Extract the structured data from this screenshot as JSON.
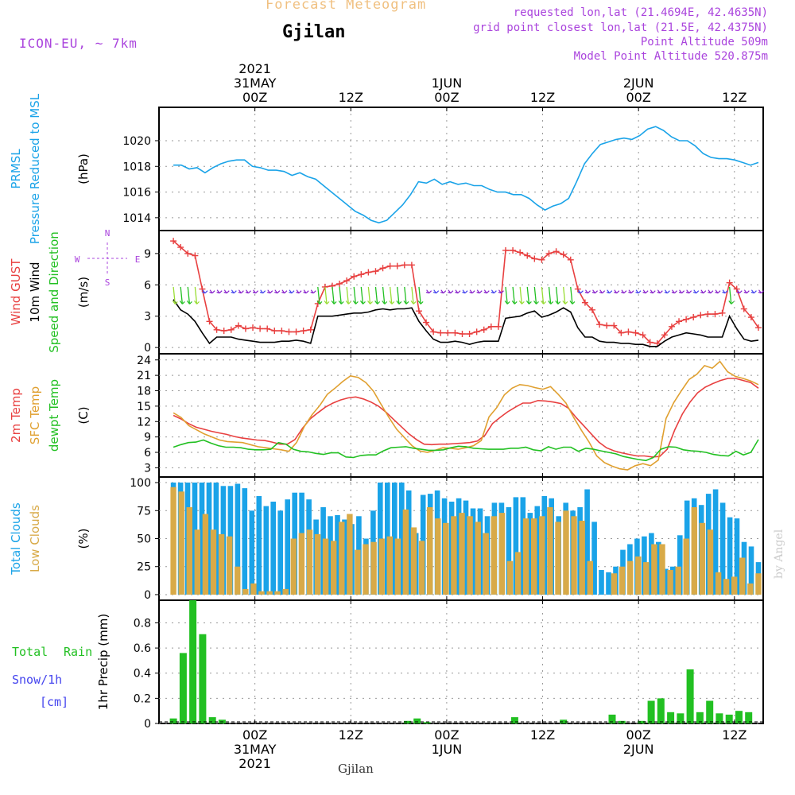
{
  "header": {
    "app_title": "Forecast Meteogram",
    "location": "Gjilan",
    "model": "ICON-EU, ~ 7km",
    "requested": "requested lon,lat (21.4694E, 42.4635N)",
    "grid_point": "grid point closest lon,lat (21.5E, 42.4375N)",
    "point_altitude": "Point Altitude 509m",
    "model_altitude": "Model Point Altitude 520.875m",
    "credit": "by Angel",
    "footer_location": "Gjilan"
  },
  "colors": {
    "pressure": "#1aa3e8",
    "gust": "#e84040",
    "wind": "#000000",
    "dir": "#22c022",
    "temp2m": "#e84040",
    "sfc": "#e0a030",
    "dewpt": "#22c022",
    "total": "#1aa3e8",
    "low": "#d8aa48",
    "rain": "#22c022",
    "snow": "#4444ee",
    "purple": "#aa44dd",
    "title": "#f0c080"
  },
  "chart_data": {
    "time_axis": {
      "hours_start": -10,
      "hours_end": 53,
      "top_ticks": [
        {
          "h": 0,
          "lines": [
            "2021",
            "31MAY",
            "00Z"
          ]
        },
        {
          "h": 10,
          "lines": [
            "12Z"
          ]
        },
        {
          "h": 20,
          "lines": [
            "1JUN",
            "00Z"
          ]
        },
        {
          "h": 30,
          "lines": [
            "12Z"
          ]
        },
        {
          "h": 40,
          "lines": [
            "2JUN",
            "00Z"
          ]
        },
        {
          "h": 50,
          "lines": [
            "12Z"
          ]
        }
      ],
      "bottom_ticks": [
        {
          "h": 0,
          "lines": [
            "00Z",
            "31MAY",
            "2021"
          ]
        },
        {
          "h": 10,
          "lines": [
            "12Z"
          ]
        },
        {
          "h": 20,
          "lines": [
            "00Z",
            "1JUN"
          ]
        },
        {
          "h": 30,
          "lines": [
            "12Z"
          ]
        },
        {
          "h": 40,
          "lines": [
            "00Z",
            "2JUN"
          ]
        },
        {
          "h": 50,
          "lines": [
            "12Z"
          ]
        }
      ]
    },
    "panels": [
      {
        "id": "pressure",
        "type": "line",
        "label_lines": [
          {
            "text": "PRMSL",
            "color": "#1aa3e8"
          },
          {
            "text": "Pressure Reduced to MSL",
            "color": "#1aa3e8"
          }
        ],
        "unit": "(hPa)",
        "ylim": [
          1013,
          1022.6
        ],
        "yticks": [
          1014,
          1016,
          1018,
          1020
        ],
        "series": [
          {
            "name": "PRMSL",
            "color": "#1aa3e8",
            "values": [
              1018.1,
              1018.1,
              1017.8,
              1017.9,
              1017.5,
              1017.9,
              1018.2,
              1018.4,
              1018.5,
              1018.5,
              1018.0,
              1017.9,
              1017.7,
              1017.7,
              1017.6,
              1017.3,
              1017.5,
              1017.2,
              1017.0,
              1016.5,
              1016.0,
              1015.5,
              1015.0,
              1014.5,
              1014.2,
              1013.8,
              1013.6,
              1013.8,
              1014.4,
              1015.0,
              1015.8,
              1016.8,
              1016.7,
              1017.0,
              1016.6,
              1016.8,
              1016.6,
              1016.7,
              1016.5,
              1016.5,
              1016.2,
              1016.0,
              1016.0,
              1015.8,
              1015.8,
              1015.5,
              1015.0,
              1014.6,
              1014.9,
              1015.1,
              1015.5,
              1016.8,
              1018.2,
              1019.0,
              1019.7,
              1019.9,
              1020.1,
              1020.2,
              1020.1,
              1020.4,
              1020.9,
              1021.1,
              1020.8,
              1020.3,
              1020.0,
              1020.0,
              1019.6,
              1019.0,
              1018.7,
              1018.6,
              1018.6,
              1018.5,
              1018.3,
              1018.1,
              1018.3
            ]
          }
        ]
      },
      {
        "id": "wind",
        "type": "line",
        "label_lines": [
          {
            "text": "Wind GUST",
            "color": "#e84040"
          },
          {
            "text": "10m Wind",
            "color": "#000000"
          },
          {
            "text": "Speed and Direction",
            "color": "#22c022"
          }
        ],
        "unit": "(m/s)",
        "ylim": [
          -0.6,
          11.2
        ],
        "yticks": [
          0,
          3,
          6,
          9
        ],
        "compass": {
          "n": "N",
          "s": "S",
          "w": "W",
          "e": "E"
        },
        "series": [
          {
            "name": "Wind GUST",
            "color": "#e84040",
            "marker": "+",
            "values": [
              10.2,
              9.6,
              9.0,
              8.8,
              5.6,
              2.5,
              1.7,
              1.6,
              1.7,
              2.1,
              1.8,
              1.9,
              1.8,
              1.8,
              1.6,
              1.6,
              1.5,
              1.5,
              1.6,
              1.7,
              4.2,
              5.8,
              5.9,
              6.1,
              6.4,
              6.8,
              7.0,
              7.2,
              7.3,
              7.6,
              7.8,
              7.8,
              7.9,
              7.9,
              3.5,
              2.4,
              1.5,
              1.4,
              1.4,
              1.4,
              1.3,
              1.3,
              1.5,
              1.7,
              2.0,
              2.0,
              9.3,
              9.3,
              9.1,
              8.8,
              8.5,
              8.4,
              9.0,
              9.2,
              8.9,
              8.4,
              5.6,
              4.3,
              3.6,
              2.2,
              2.1,
              2.1,
              1.4,
              1.5,
              1.4,
              1.2,
              0.5,
              0.4,
              1.2,
              2.0,
              2.5,
              2.7,
              2.9,
              3.1,
              3.2,
              3.2,
              3.3,
              6.2,
              5.6,
              3.7,
              2.9,
              1.9
            ]
          },
          {
            "name": "10m Wind",
            "color": "#000000",
            "values": [
              4.6,
              3.6,
              3.2,
              2.5,
              1.4,
              0.4,
              1.0,
              1.0,
              1.0,
              0.8,
              0.7,
              0.6,
              0.5,
              0.5,
              0.5,
              0.6,
              0.6,
              0.7,
              0.6,
              0.4,
              3.0,
              3.0,
              3.0,
              3.1,
              3.2,
              3.3,
              3.3,
              3.4,
              3.6,
              3.7,
              3.6,
              3.7,
              3.7,
              3.8,
              2.5,
              1.6,
              0.8,
              0.5,
              0.5,
              0.6,
              0.5,
              0.3,
              0.5,
              0.6,
              0.6,
              0.6,
              2.8,
              2.9,
              3.0,
              3.3,
              3.5,
              2.9,
              3.1,
              3.4,
              3.8,
              3.4,
              1.9,
              1.0,
              1.0,
              0.6,
              0.5,
              0.5,
              0.4,
              0.4,
              0.3,
              0.3,
              0.1,
              0.1,
              0.6,
              1.0,
              1.2,
              1.4,
              1.3,
              1.2,
              1.0,
              1.0,
              1.0,
              3.0,
              1.8,
              0.8,
              0.6,
              0.7
            ]
          }
        ]
      },
      {
        "id": "temp",
        "type": "line",
        "label_lines": [
          {
            "text": "2m Temp",
            "color": "#e84040"
          },
          {
            "text": "SFC Temp",
            "color": "#e0a030"
          },
          {
            "text": "dewpt Temp",
            "color": "#22c022"
          }
        ],
        "unit": "(C)",
        "ylim": [
          1.2,
          25.2
        ],
        "yticks": [
          3,
          6,
          9,
          12,
          15,
          18,
          21,
          24
        ],
        "series": [
          {
            "name": "2m Temp",
            "color": "#e84040",
            "values": [
              13.2,
              12.5,
              11.6,
              10.9,
              10.5,
              10.1,
              9.8,
              9.5,
              9.1,
              8.8,
              8.6,
              8.4,
              8.3,
              8.0,
              7.6,
              7.6,
              8.5,
              10.7,
              12.5,
              13.7,
              14.8,
              15.6,
              16.2,
              16.6,
              16.8,
              16.4,
              15.8,
              15.0,
              13.8,
              12.4,
              11.0,
              9.6,
              8.5,
              7.6,
              7.5,
              7.6,
              7.6,
              7.7,
              7.8,
              7.9,
              8.2,
              9.3,
              11.6,
              12.8,
              13.9,
              14.8,
              15.6,
              15.6,
              16.1,
              16.0,
              15.8,
              15.5,
              14.6,
              12.8,
              11.2,
              9.6,
              8.0,
              6.9,
              6.3,
              5.9,
              5.6,
              5.3,
              5.3,
              5.1,
              5.2,
              6.6,
              10.4,
              13.5,
              15.8,
              17.6,
              18.7,
              19.4,
              20.0,
              20.4,
              20.4,
              20.0,
              19.6,
              18.5
            ]
          },
          {
            "name": "SFC Temp",
            "color": "#e0a030",
            "values": [
              13.7,
              12.8,
              11.2,
              10.4,
              9.6,
              9.0,
              8.4,
              8.1,
              8.0,
              7.9,
              7.5,
              7.1,
              6.9,
              6.7,
              6.5,
              6.2,
              7.9,
              11.0,
              13.3,
              15.1,
              17.3,
              18.5,
              19.8,
              20.9,
              20.6,
              19.6,
              17.9,
              15.3,
              12.8,
              10.5,
              8.9,
              7.3,
              6.3,
              6.0,
              6.4,
              6.9,
              6.8,
              6.6,
              6.9,
              7.3,
              8.3,
              12.9,
              14.7,
              17.2,
              18.5,
              19.2,
              19.0,
              18.6,
              18.3,
              18.8,
              17.3,
              15.6,
              12.8,
              10.3,
              8.0,
              5.3,
              4.0,
              3.3,
              2.8,
              2.6,
              3.4,
              3.8,
              3.4,
              4.5,
              12.6,
              15.7,
              18.0,
              20.2,
              21.2,
              22.9,
              22.4,
              23.7,
              21.7,
              20.8,
              20.4,
              19.9,
              19.2
            ]
          },
          {
            "name": "dewpt Temp",
            "color": "#22c022",
            "values": [
              7.0,
              7.5,
              7.9,
              8.0,
              8.4,
              7.8,
              7.3,
              7.0,
              7.0,
              6.9,
              6.6,
              6.5,
              6.5,
              6.6,
              7.9,
              7.6,
              6.6,
              6.2,
              6.1,
              5.8,
              5.6,
              5.9,
              5.9,
              5.1,
              5.0,
              5.4,
              5.5,
              5.5,
              6.3,
              6.9,
              7.0,
              7.1,
              6.8,
              6.6,
              6.4,
              6.4,
              6.5,
              6.9,
              7.2,
              7.1,
              6.8,
              6.7,
              6.6,
              6.6,
              6.6,
              6.8,
              6.8,
              7.0,
              6.5,
              6.3,
              7.1,
              6.6,
              7.0,
              7.0,
              6.2,
              6.8,
              6.6,
              6.3,
              6.0,
              5.7,
              5.2,
              4.9,
              4.6,
              4.4,
              5.0,
              6.6,
              7.1,
              7.0,
              6.5,
              6.3,
              6.2,
              6.0,
              5.6,
              5.4,
              5.3,
              6.2,
              5.5,
              6.0,
              8.5
            ]
          }
        ]
      },
      {
        "id": "clouds",
        "type": "bar",
        "label_lines": [
          {
            "text": "Total Clouds",
            "color": "#1aa3e8"
          },
          {
            "text": "Low Clouds",
            "color": "#d8aa48"
          }
        ],
        "unit": "(%)",
        "ylim": [
          -5,
          105
        ],
        "yticks": [
          0,
          25,
          50,
          75,
          100
        ],
        "series": [
          {
            "name": "Total Clouds",
            "color": "#1aa3e8",
            "values": [
              100,
              100,
              100,
              100,
              100,
              100,
              100,
              97,
              97,
              99,
              95,
              75,
              88,
              79,
              83,
              75,
              85,
              91,
              91,
              85,
              67,
              78,
              70,
              71,
              67,
              63,
              70,
              50,
              75,
              100,
              100,
              100,
              100,
              93,
              55,
              89,
              90,
              93,
              86,
              83,
              86,
              84,
              77,
              77,
              70,
              82,
              82,
              78,
              87,
              87,
              73,
              79,
              88,
              86,
              70,
              82,
              75,
              78,
              94,
              65,
              22,
              20,
              25,
              40,
              45,
              50,
              52,
              55,
              47,
              23,
              25,
              53,
              84,
              86,
              80,
              90,
              94,
              82,
              69,
              68,
              47,
              43,
              29
            ]
          },
          {
            "name": "Low Clouds",
            "color": "#d8aa48",
            "values": [
              96,
              92,
              78,
              58,
              72,
              58,
              54,
              52,
              25,
              5,
              10,
              3,
              3,
              3,
              5,
              50,
              55,
              58,
              54,
              50,
              48,
              65,
              72,
              40,
              45,
              47,
              50,
              52,
              50,
              76,
              60,
              48,
              78,
              68,
              64,
              70,
              73,
              70,
              65,
              55,
              70,
              73,
              30,
              38,
              68,
              68,
              70,
              78,
              65,
              75,
              70,
              66,
              30,
              0,
              0,
              19,
              25,
              30,
              34,
              29,
              45,
              45,
              22,
              25,
              50,
              78,
              64,
              58,
              20,
              14,
              16,
              33,
              10,
              19
            ]
          }
        ]
      },
      {
        "id": "precip",
        "type": "bar",
        "label_lines": [
          {
            "text": "1hr Precip (mm)",
            "color": "#000000"
          }
        ],
        "unit": "",
        "side_labels": {
          "total": "Total",
          "rain": "Rain",
          "snow": "Snow/1h",
          "cm": "[cm]"
        },
        "ylim": [
          0,
          0.98
        ],
        "yticks": [
          0,
          0.2,
          0.4,
          0.6,
          0.8
        ],
        "series": [
          {
            "name": "Rain",
            "color": "#22c022",
            "values": [
              0.04,
              0.56,
              0.98,
              0.71,
              0.05,
              0.03,
              0,
              0,
              0,
              0,
              0,
              0,
              0,
              0,
              0,
              0,
              0,
              0,
              0,
              0,
              0,
              0,
              0,
              0,
              0.02,
              0.04,
              0.01,
              0,
              0,
              0,
              0,
              0,
              0,
              0,
              0,
              0.05,
              0,
              0,
              0,
              0,
              0.03,
              0,
              0,
              0,
              0,
              0.07,
              0.02,
              0,
              0.02,
              0.18,
              0.2,
              0.09,
              0.08,
              0.43,
              0.09,
              0.18,
              0.08,
              0.07,
              0.1,
              0.09,
              0
            ]
          }
        ]
      }
    ]
  }
}
